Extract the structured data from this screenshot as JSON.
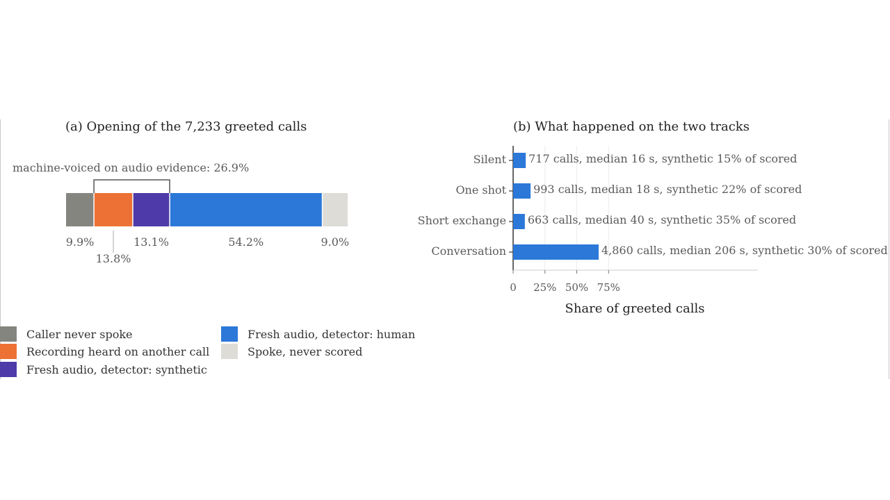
{
  "chart_data": [
    {
      "type": "bar",
      "orientation": "horizontal-stacked",
      "title": "(a) Opening of the 7,233 greeted calls",
      "bracket_label": "machine-voiced on audio evidence: 26.9%",
      "segments": [
        {
          "name": "Caller never spoke",
          "value": 9.9,
          "label": "9.9%",
          "color": "#858580"
        },
        {
          "name": "Recording heard on another call",
          "value": 13.8,
          "label": "13.8%",
          "color": "#ed7135"
        },
        {
          "name": "Fresh audio, detector: synthetic",
          "value": 13.1,
          "label": "13.1%",
          "color": "#4e3aa8"
        },
        {
          "name": "Fresh audio, detector: human",
          "value": 54.2,
          "label": "54.2%",
          "color": "#2b78d9"
        },
        {
          "name": "Spoke, never scored",
          "value": 9.0,
          "label": "9.0%",
          "color": "#dddcd6"
        }
      ],
      "legend_position": "bottom"
    },
    {
      "type": "bar",
      "orientation": "horizontal",
      "title": "(b) What happened on the two tracks",
      "xlabel": "Share of greeted calls",
      "xlim": [
        0,
        100
      ],
      "xticks": [
        {
          "value": 0,
          "label": "0"
        },
        {
          "value": 25,
          "label": "25%"
        },
        {
          "value": 50,
          "label": "50%"
        },
        {
          "value": 75,
          "label": "75%"
        }
      ],
      "categories": [
        "Silent",
        "One shot",
        "Short exchange",
        "Conversation"
      ],
      "values": [
        9.9,
        13.7,
        9.2,
        67.2
      ],
      "annotations": [
        "717 calls, median 16 s, synthetic 15% of scored",
        "993 calls, median 18 s, synthetic 22% of scored",
        "663 calls, median 40 s, synthetic 35% of scored",
        "4,860 calls, median 206 s, synthetic 30% of scored"
      ],
      "bar_color": "#2b78d9",
      "grid": true
    }
  ]
}
